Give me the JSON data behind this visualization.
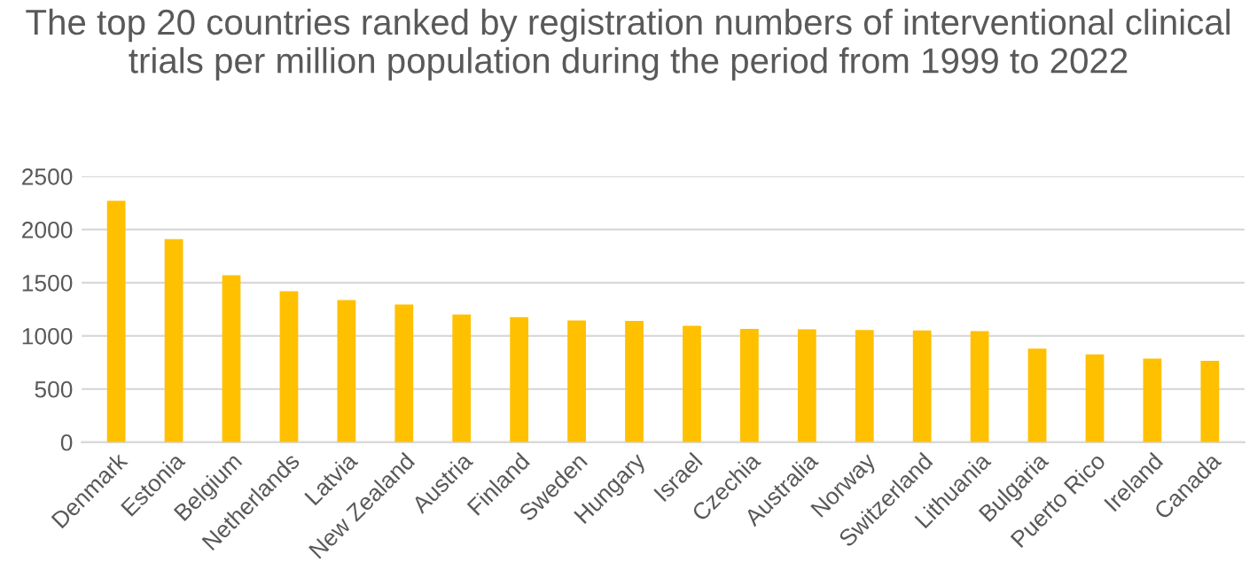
{
  "chart_data": {
    "type": "bar",
    "title": "The top 20 countries ranked by registration numbers of interventional clinical trials per million population during the period from 1999 to 2022",
    "categories": [
      "Denmark",
      "Estonia",
      "Belgium",
      "Netherlands",
      "Latvia",
      "New Zealand",
      "Austria",
      "Finland",
      "Sweden",
      "Hungary",
      "Israel",
      "Czechia",
      "Australia",
      "Norway",
      "Switzerland",
      "Lithuania",
      "Bulgaria",
      "Puerto Rico",
      "Ireland",
      "Canada"
    ],
    "values": [
      2270,
      1910,
      1570,
      1420,
      1335,
      1295,
      1200,
      1175,
      1145,
      1140,
      1095,
      1065,
      1060,
      1055,
      1050,
      1045,
      880,
      825,
      785,
      765
    ],
    "color": "#ffc000",
    "ylim": [
      0,
      2500
    ],
    "yticks": [
      0,
      500,
      1000,
      1500,
      2000,
      2500
    ],
    "grid": "y"
  }
}
